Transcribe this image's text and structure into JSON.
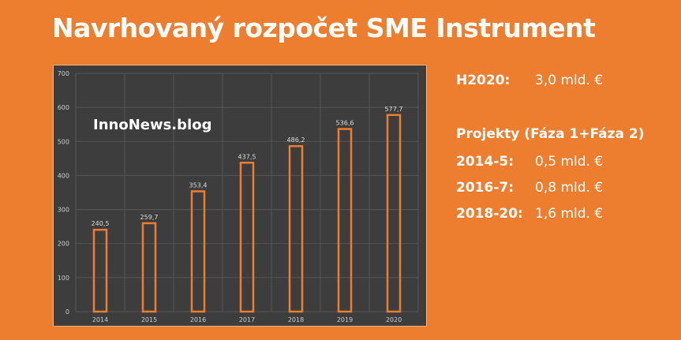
{
  "title": "Navrhovaný rozpočet SME Instrument",
  "watermark": "InnoNews.blog",
  "info": {
    "h2020": {
      "label": "H2020:",
      "value": "3,0 mld. €"
    },
    "projects_header": "Projekty (Fáza 1+Fáza 2)",
    "rows": [
      {
        "label": "2014-5:",
        "value": "0,5 mld. €"
      },
      {
        "label": "2016-7:",
        "value": "0,8 mld. €"
      },
      {
        "label": "2018-20:",
        "value": "1,6 mld. €"
      }
    ]
  },
  "colors": {
    "background": "#ED7E30",
    "chart_bg": "#3d3d3d",
    "bar_outline": "#ED7E30"
  },
  "chart_data": {
    "type": "bar",
    "categories": [
      "2014",
      "2015",
      "2016",
      "2017",
      "2018",
      "2019",
      "2020"
    ],
    "values": [
      240.5,
      259.7,
      353.4,
      437.5,
      486.2,
      536.6,
      577.7
    ],
    "value_labels": [
      "240,5",
      "259,7",
      "353,4",
      "437,5",
      "486,2",
      "536,6",
      "577,7"
    ],
    "ylim": [
      0,
      700
    ],
    "yticks": [
      0,
      100,
      200,
      300,
      400,
      500,
      600,
      700
    ],
    "grid": true,
    "bar_style": "outline"
  }
}
